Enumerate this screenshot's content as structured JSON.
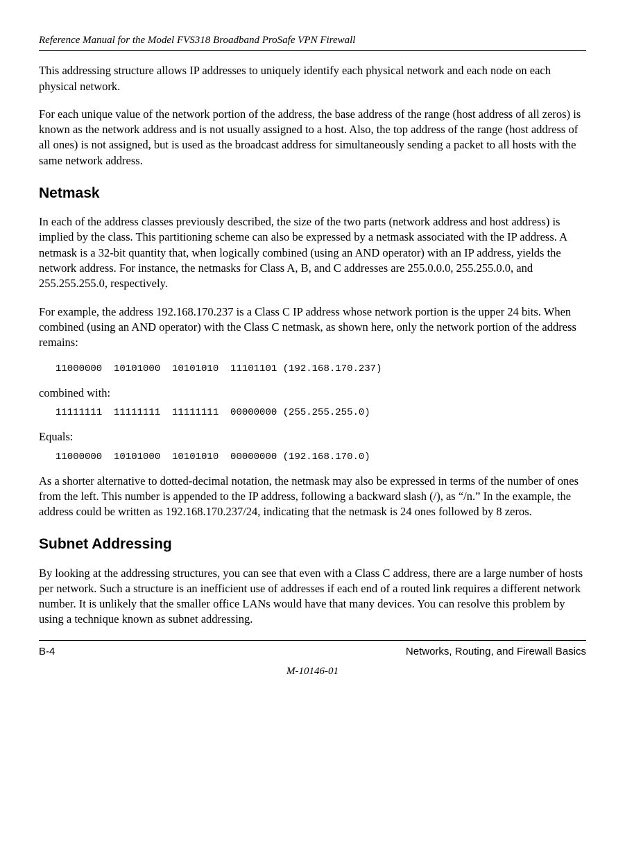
{
  "header": {
    "title": "Reference Manual for the Model FVS318 Broadband  ProSafe VPN Firewall"
  },
  "body": {
    "p1": "This addressing structure allows IP addresses to uniquely identify each physical network and each node on each physical network.",
    "p2": "For each unique value of the network portion of the address, the base address of the range (host address of all zeros) is known as the network address and is not usually assigned to a host. Also, the top address of the range (host address of all ones) is not assigned, but is used as the broadcast address for simultaneously sending a packet to all hosts with the same network address.",
    "h_netmask": "Netmask",
    "p3": "In each of the address classes previously described, the size of the two parts (network address and host address) is implied by the class. This partitioning scheme can also be expressed by a netmask associated with the IP address. A netmask is a 32-bit quantity that, when logically combined (using an AND operator) with an IP address, yields the network address. For instance, the netmasks for Class A, B, and C addresses are 255.0.0.0, 255.255.0.0, and 255.255.255.0, respectively.",
    "p4": "For example, the address 192.168.170.237 is a Class C IP address whose network portion is the upper 24 bits. When combined (using an AND operator) with the Class C netmask, as shown here, only the network portion of the address remains:",
    "mono1": "11000000  10101000  10101010  11101101 (192.168.170.237)",
    "p5": "combined with:",
    "mono2": "11111111  11111111  11111111  00000000 (255.255.255.0)",
    "p6": "Equals:",
    "mono3": "11000000  10101000  10101010  00000000 (192.168.170.0)",
    "p7": "As a shorter alternative to dotted-decimal notation, the netmask may also be expressed in terms of the number of ones from the left. This number is appended to the IP address, following a backward slash (/), as “/n.” In the example, the address could be written as 192.168.170.237/24, indicating that the netmask is 24 ones followed by 8 zeros.",
    "h_subnet": "Subnet Addressing",
    "p8": "By looking at the addressing structures, you can see that even with a Class C address, there are a large number of hosts per network. Such a structure is an inefficient use of addresses if each end of a routed link requires a different network number. It is unlikely that the smaller office LANs would have that many devices. You can resolve this problem by using a technique known as subnet addressing."
  },
  "footer": {
    "left": "B-4",
    "right": "Networks, Routing, and Firewall Basics",
    "center": "M-10146-01"
  }
}
